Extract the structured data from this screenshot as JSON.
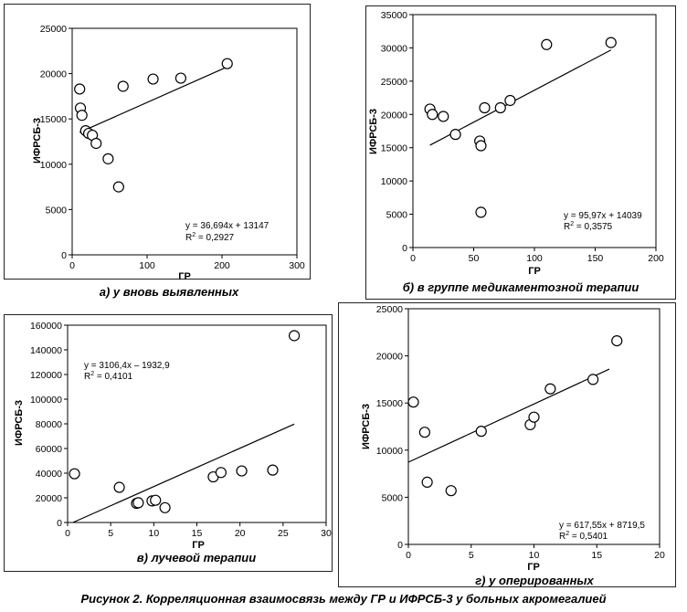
{
  "figure_caption": "Рисунок 2. Корреляционная взаимосвязь между ГР и ИФРСБ-3 у больных акромегалией",
  "chart_data": [
    {
      "type": "scatter",
      "caption": "а) у вновь выявленных",
      "xlabel": "ГР",
      "ylabel": "ИФРСБ-3",
      "xlim": [
        0,
        300
      ],
      "ylim": [
        0,
        25000
      ],
      "xticks": [
        0,
        100,
        200,
        300
      ],
      "yticks": [
        0,
        5000,
        10000,
        15000,
        20000,
        25000
      ],
      "x": [
        10,
        11,
        13,
        18,
        22,
        27,
        32,
        48,
        62,
        68,
        108,
        145,
        207
      ],
      "y": [
        18300,
        16200,
        15400,
        13700,
        13400,
        13200,
        12300,
        10600,
        7500,
        18600,
        19400,
        19500,
        21100
      ],
      "trendline": {
        "slope": 36.694,
        "intercept": 13147,
        "x_range": [
          10,
          207
        ]
      },
      "equation": "y = 36,694x + 13147",
      "r2_label": "R",
      "r2_sup": "2",
      "r2_value": " = 0,2927"
    },
    {
      "type": "scatter",
      "caption": "б) в группе медикаментозной терапии",
      "xlabel": "ГР",
      "ylabel": "ИФРСБ-3",
      "xlim": [
        0,
        200
      ],
      "ylim": [
        0,
        35000
      ],
      "xticks": [
        0,
        50,
        100,
        150,
        200
      ],
      "yticks": [
        0,
        5000,
        10000,
        15000,
        20000,
        25000,
        30000,
        35000
      ],
      "x": [
        14,
        16,
        25,
        35,
        55,
        56,
        56,
        59,
        72,
        80,
        110,
        163
      ],
      "y": [
        20800,
        20000,
        19700,
        17000,
        16000,
        15300,
        5300,
        21000,
        21000,
        22100,
        30500,
        30800
      ],
      "trendline": {
        "slope": 95.97,
        "intercept": 14039,
        "x_range": [
          14,
          163
        ]
      },
      "equation": "y = 95,97x + 14039",
      "r2_label": "R",
      "r2_sup": "2",
      "r2_value": " = 0,3575"
    },
    {
      "type": "scatter",
      "caption": "в) лучевой терапии",
      "xlabel": "ГР",
      "ylabel": "ИФРСБ-3",
      "xlim": [
        0,
        30
      ],
      "ylim": [
        0,
        160000
      ],
      "xticks": [
        0,
        5,
        10,
        15,
        20,
        25,
        30
      ],
      "yticks": [
        0,
        20000,
        40000,
        60000,
        80000,
        100000,
        120000,
        140000,
        160000
      ],
      "x": [
        0.8,
        6,
        8,
        8.2,
        9.8,
        10.2,
        11.3,
        16.9,
        17.8,
        20.2,
        23.8,
        26.3
      ],
      "y": [
        39500,
        28500,
        15500,
        16000,
        17500,
        18000,
        12000,
        37000,
        40500,
        41800,
        42500,
        151500
      ],
      "trendline": {
        "slope": 3106.4,
        "intercept": -1932.9,
        "x_range": [
          0.62,
          26.3
        ]
      },
      "equation": "y = 3106,4x – 1932,9",
      "r2_label": "R",
      "r2_sup": "2",
      "r2_value": " = 0,4101"
    },
    {
      "type": "scatter",
      "caption": "г) у оперированных",
      "xlabel": "ГР",
      "ylabel": "ИФРСБ-3",
      "xlim": [
        0,
        20
      ],
      "ylim": [
        0,
        25000
      ],
      "xticks": [
        0,
        5,
        10,
        15,
        20
      ],
      "yticks": [
        0,
        5000,
        10000,
        15000,
        20000,
        25000
      ],
      "x": [
        0.4,
        1.3,
        1.5,
        3.4,
        5.8,
        9.7,
        10,
        11.3,
        14.7,
        16.6
      ],
      "y": [
        15100,
        11900,
        6600,
        5700,
        12000,
        12700,
        13500,
        16500,
        17500,
        21600
      ],
      "trendline": {
        "slope": 617.55,
        "intercept": 8719.5,
        "x_range": [
          0,
          16
        ]
      },
      "equation": "y = 617,55x + 8719,5",
      "r2_label": "R",
      "r2_sup": "2",
      "r2_value": " = 0,5401"
    }
  ]
}
